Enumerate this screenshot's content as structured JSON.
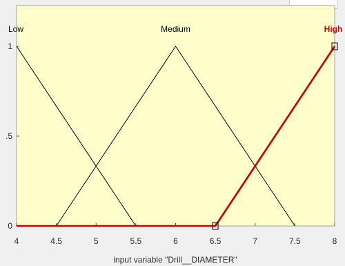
{
  "window": {
    "plot_background": "#ffffcc",
    "line_color": "#000000",
    "selected_color": "#cc0000"
  },
  "chart_data": {
    "type": "line",
    "xlabel": "input variable \"Drill__DIAMETER\"",
    "xlim": [
      4,
      8
    ],
    "ylim": [
      0,
      1
    ],
    "x_ticks": [
      "4",
      "4.5",
      "5",
      "5.5",
      "6",
      "6.5",
      "7",
      "7.5",
      "8"
    ],
    "y_ticks": [
      {
        "value": 0,
        "label": "0"
      },
      {
        "value": 0.5,
        "label": ".5"
      },
      {
        "value": 1,
        "label": "1"
      }
    ],
    "membership_functions": [
      {
        "name": "Low",
        "x": [
          4,
          4,
          5.5
        ],
        "y": [
          1,
          1,
          0
        ],
        "selected": false
      },
      {
        "name": "Medium",
        "x": [
          4.5,
          6,
          7.5
        ],
        "y": [
          0,
          1,
          0
        ],
        "selected": false
      },
      {
        "name": "High",
        "x": [
          6.5,
          8,
          8
        ],
        "y": [
          0,
          1,
          1
        ],
        "selected": true
      }
    ],
    "selected_function_full_line": {
      "x": [
        4,
        6.5,
        8
      ],
      "y": [
        0,
        0,
        1
      ]
    },
    "handles": [
      {
        "x": 6.5,
        "y": 0
      },
      {
        "x": 8,
        "y": 1
      }
    ]
  }
}
